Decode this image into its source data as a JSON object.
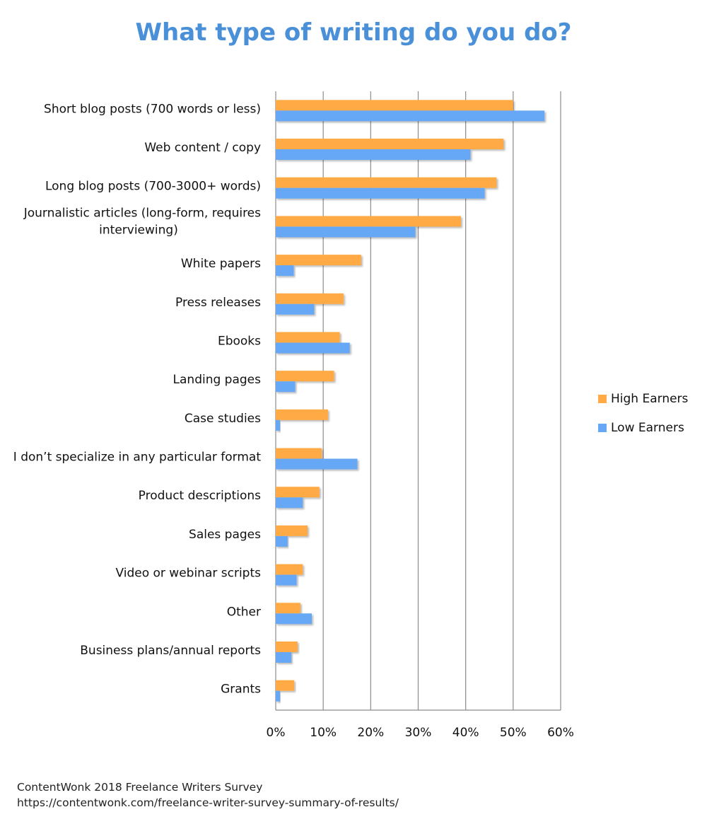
{
  "chart_data": {
    "type": "bar",
    "orientation": "horizontal",
    "title": "What type of writing do you do?",
    "categories": [
      "Short blog posts (700 words or less)",
      "Web content / copy",
      "Long blog posts (700-3000+ words)",
      "Journalistic articles (long-form, requires interviewing)",
      "White papers",
      "Press releases",
      "Ebooks",
      "Landing pages",
      "Case studies",
      "I don’t specialize in any particular format",
      "Product descriptions",
      "Sales pages",
      "Video or webinar scripts",
      "Other",
      "Business plans/annual reports",
      "Grants"
    ],
    "category_label_lines": [
      [
        "Short blog posts (700 words or less)"
      ],
      [
        "Web content / copy"
      ],
      [
        "Long blog posts (700-3000+ words)"
      ],
      [
        "Journalistic articles (long-form, requires",
        "interviewing)"
      ],
      [
        "White papers"
      ],
      [
        "Press releases"
      ],
      [
        "Ebooks"
      ],
      [
        "Landing pages"
      ],
      [
        "Case studies"
      ],
      [
        "I don’t specialize in any particular format"
      ],
      [
        "Product descriptions"
      ],
      [
        "Sales pages"
      ],
      [
        "Video or webinar scripts"
      ],
      [
        "Other"
      ],
      [
        "Business plans/annual reports"
      ],
      [
        "Grants"
      ]
    ],
    "series": [
      {
        "name": "High Earners",
        "color": "#ffaa44",
        "values": [
          50,
          48,
          46.5,
          39,
          18,
          14.3,
          13.5,
          12.3,
          11,
          9.7,
          9.2,
          6.7,
          5.7,
          5.2,
          4.6,
          3.9
        ]
      },
      {
        "name": "Low Earners",
        "color": "#66a8f5",
        "values": [
          56.6,
          41,
          44,
          29.4,
          3.8,
          8.1,
          15.6,
          4.1,
          0.9,
          17.2,
          5.7,
          2.5,
          4.4,
          7.6,
          3.3,
          0.9
        ]
      }
    ],
    "x_ticks": [
      "0%",
      "10%",
      "20%",
      "30%",
      "40%",
      "50%",
      "60%"
    ],
    "xlim": [
      0,
      60
    ],
    "xlabel": "",
    "ylabel": "",
    "grid": true,
    "legend_position": "right"
  },
  "footer": {
    "source": "ContentWonk 2018 Freelance Writers Survey",
    "url": "https://contentwonk.com/freelance-writer-survey-summary-of-results/"
  }
}
